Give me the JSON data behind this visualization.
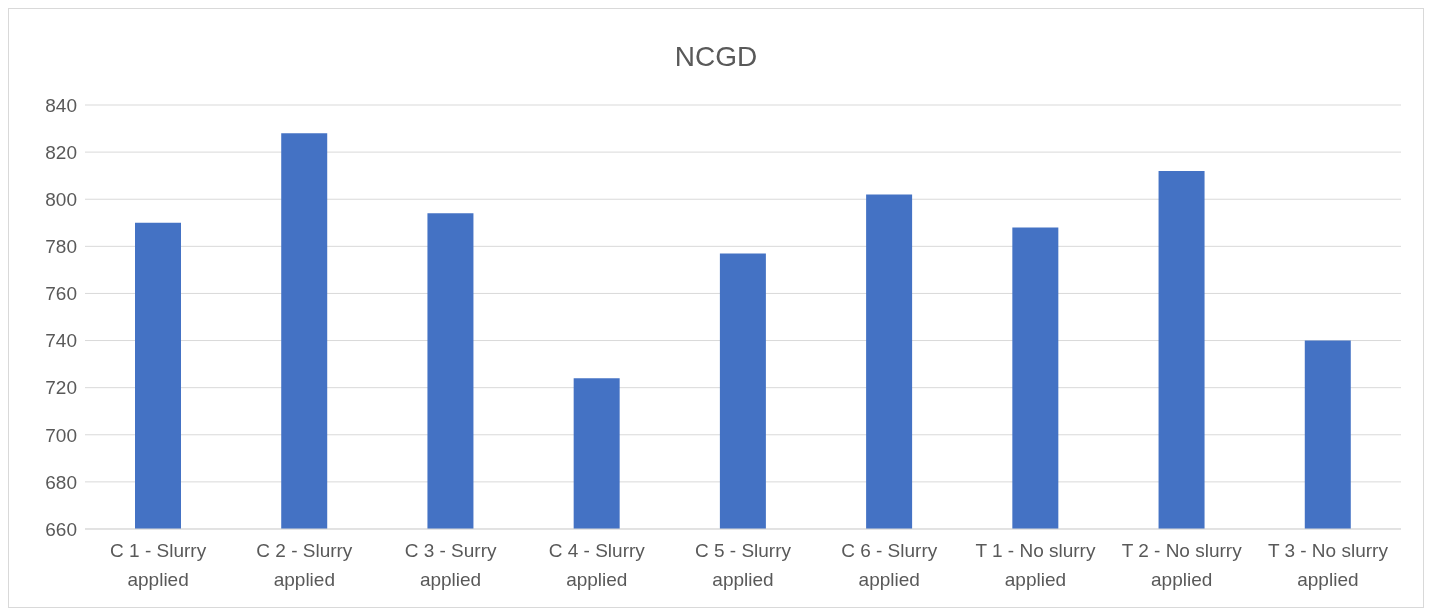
{
  "chart_data": {
    "type": "bar",
    "title": "NCGD",
    "categories": [
      "C 1 - Slurry applied",
      "C 2 - Slurry applied",
      "C 3 - Surry applied",
      "C 4 - Slurry applied",
      "C 5 - Slurry applied",
      "C 6 - Slurry applied",
      "T 1 - No slurry applied",
      "T 2 - No slurry applied",
      "T 3 - No slurry applied"
    ],
    "values": [
      790,
      828,
      794,
      724,
      777,
      802,
      788,
      812,
      740
    ],
    "color": "#4472c4",
    "ylim": [
      660,
      840
    ],
    "yticks": [
      660,
      680,
      700,
      720,
      740,
      760,
      780,
      800,
      820,
      840
    ],
    "grid": "y",
    "legend": false
  }
}
